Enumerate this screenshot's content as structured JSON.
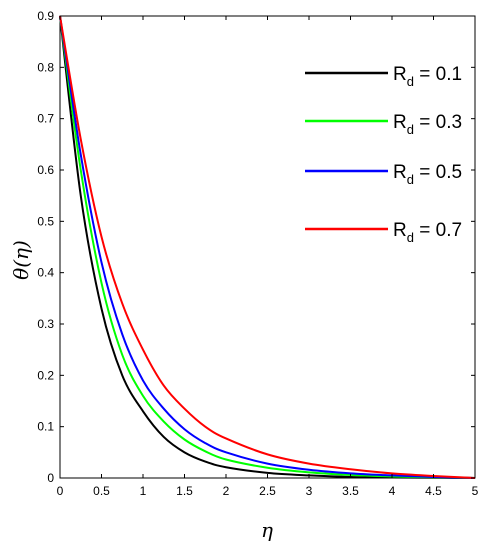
{
  "chart_data": {
    "type": "line",
    "xlabel": "η",
    "ylabel": "θ(η)",
    "xlim": [
      0,
      5
    ],
    "ylim": [
      0,
      0.9
    ],
    "xticks": [
      "0",
      "0.5",
      "1",
      "1.5",
      "2",
      "2.5",
      "3",
      "3.5",
      "4",
      "4.5",
      "5"
    ],
    "yticks": [
      "0",
      "0.1",
      "0.2",
      "0.3",
      "0.4",
      "0.5",
      "0.6",
      "0.7",
      "0.8",
      "0.9"
    ],
    "grid": false,
    "legend_position": "top-right",
    "x": [
      0,
      0.25,
      0.5,
      0.75,
      1,
      1.25,
      1.5,
      1.75,
      2,
      2.5,
      3,
      3.5,
      4,
      4.5,
      5
    ],
    "series": [
      {
        "name": "R",
        "subscript": "d",
        "label_suffix": " = 0.1",
        "color": "#000000",
        "values": [
          0.9,
          0.55,
          0.33,
          0.2,
          0.13,
          0.08,
          0.05,
          0.032,
          0.021,
          0.01,
          0.005,
          0.002,
          0.001,
          0.0005,
          0.0
        ]
      },
      {
        "name": "R",
        "subscript": "d",
        "label_suffix": " = 0.3",
        "color": "#00ff00",
        "values": [
          0.9,
          0.6,
          0.38,
          0.24,
          0.16,
          0.11,
          0.075,
          0.052,
          0.036,
          0.02,
          0.011,
          0.006,
          0.003,
          0.0015,
          0.0
        ]
      },
      {
        "name": "R",
        "subscript": "d",
        "label_suffix": " = 0.5",
        "color": "#0000ff",
        "values": [
          0.9,
          0.63,
          0.42,
          0.28,
          0.19,
          0.135,
          0.095,
          0.068,
          0.05,
          0.028,
          0.016,
          0.009,
          0.005,
          0.002,
          0.0
        ]
      },
      {
        "name": "R",
        "subscript": "d",
        "label_suffix": " = 0.7",
        "color": "#ff0000",
        "values": [
          0.9,
          0.66,
          0.47,
          0.34,
          0.25,
          0.18,
          0.135,
          0.1,
          0.077,
          0.046,
          0.028,
          0.017,
          0.009,
          0.004,
          0.0
        ]
      }
    ]
  }
}
